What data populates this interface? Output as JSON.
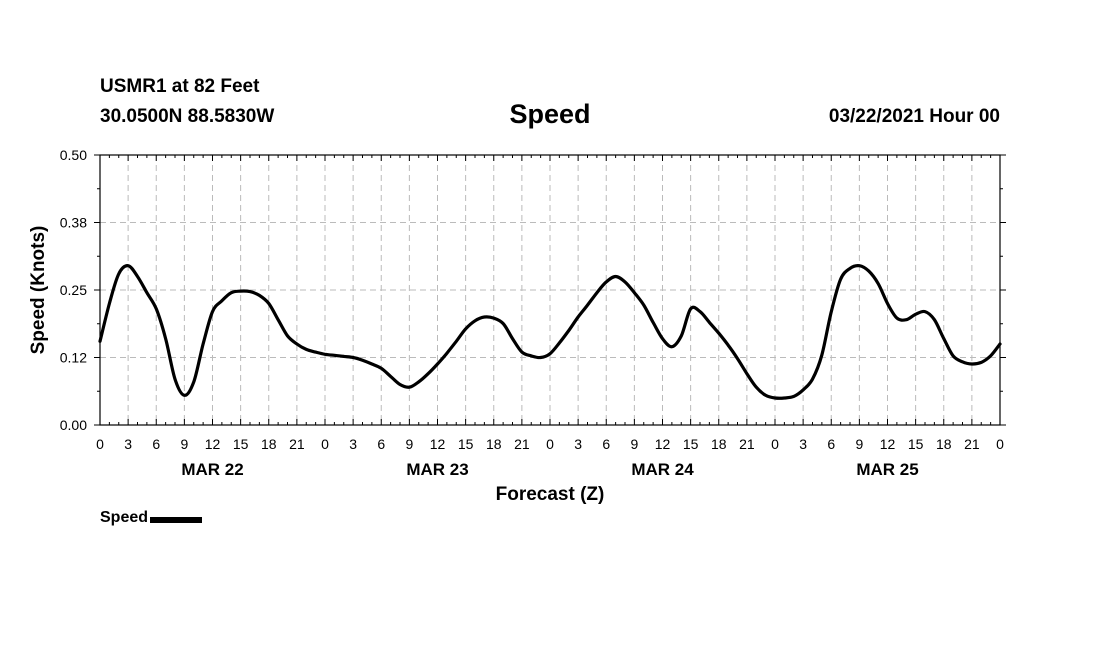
{
  "header": {
    "station": "USMR1 at 82 Feet",
    "coords": "30.0500N 88.5830W",
    "title": "Speed",
    "run_time": "03/22/2021 Hour 00"
  },
  "legend": {
    "label": "Speed"
  },
  "chart_data": {
    "type": "line",
    "title": "Speed",
    "xlabel": "Forecast (Z)",
    "ylabel": "Speed (Knots)",
    "ylim": [
      0,
      0.5
    ],
    "yticks": [
      "0.00",
      "0.12",
      "0.25",
      "0.38",
      "0.50"
    ],
    "xlim_hours": [
      0,
      96
    ],
    "xtick_labels": [
      "0",
      "3",
      "6",
      "9",
      "12",
      "15",
      "18",
      "21",
      "0",
      "3",
      "6",
      "9",
      "12",
      "15",
      "18",
      "21",
      "0",
      "3",
      "6",
      "9",
      "12",
      "15",
      "18",
      "21",
      "0",
      "3",
      "6",
      "9",
      "12",
      "15",
      "18",
      "21",
      "0"
    ],
    "day_labels": [
      "MAR 22",
      "MAR 23",
      "MAR 24",
      "MAR 25"
    ],
    "grid": true,
    "series": [
      {
        "name": "Speed",
        "color": "#000000",
        "x": [
          0,
          1,
          2,
          3,
          4,
          5,
          6,
          7,
          8,
          9,
          10,
          11,
          12,
          13,
          14,
          15,
          16,
          17,
          18,
          19,
          20,
          21,
          22,
          23,
          24,
          25,
          26,
          27,
          28,
          29,
          30,
          31,
          32,
          33,
          34,
          35,
          36,
          37,
          38,
          39,
          40,
          41,
          42,
          43,
          44,
          45,
          46,
          47,
          48,
          49,
          50,
          51,
          52,
          53,
          54,
          55,
          56,
          57,
          58,
          59,
          60,
          61,
          62,
          63,
          64,
          65,
          66,
          67,
          68,
          69,
          70,
          71,
          72,
          73,
          74,
          75,
          76,
          77,
          78,
          79,
          80,
          81,
          82,
          83,
          84,
          85,
          86,
          87,
          88,
          89,
          90,
          91,
          92,
          93,
          94,
          95,
          96
        ],
        "values": [
          0.155,
          0.225,
          0.28,
          0.295,
          0.275,
          0.245,
          0.215,
          0.16,
          0.085,
          0.055,
          0.08,
          0.15,
          0.21,
          0.23,
          0.245,
          0.248,
          0.247,
          0.24,
          0.225,
          0.195,
          0.165,
          0.15,
          0.14,
          0.135,
          0.131,
          0.129,
          0.127,
          0.125,
          0.12,
          0.113,
          0.105,
          0.09,
          0.075,
          0.07,
          0.08,
          0.095,
          0.113,
          0.133,
          0.155,
          0.178,
          0.193,
          0.2,
          0.198,
          0.188,
          0.16,
          0.135,
          0.128,
          0.125,
          0.132,
          0.152,
          0.175,
          0.2,
          0.222,
          0.245,
          0.265,
          0.275,
          0.265,
          0.245,
          0.222,
          0.19,
          0.16,
          0.145,
          0.165,
          0.215,
          0.21,
          0.19,
          0.17,
          0.148,
          0.123,
          0.095,
          0.07,
          0.055,
          0.05,
          0.05,
          0.053,
          0.065,
          0.085,
          0.13,
          0.21,
          0.27,
          0.29,
          0.295,
          0.285,
          0.262,
          0.225,
          0.198,
          0.195,
          0.205,
          0.21,
          0.195,
          0.16,
          0.128,
          0.117,
          0.113,
          0.116,
          0.128,
          0.15
        ]
      }
    ]
  }
}
